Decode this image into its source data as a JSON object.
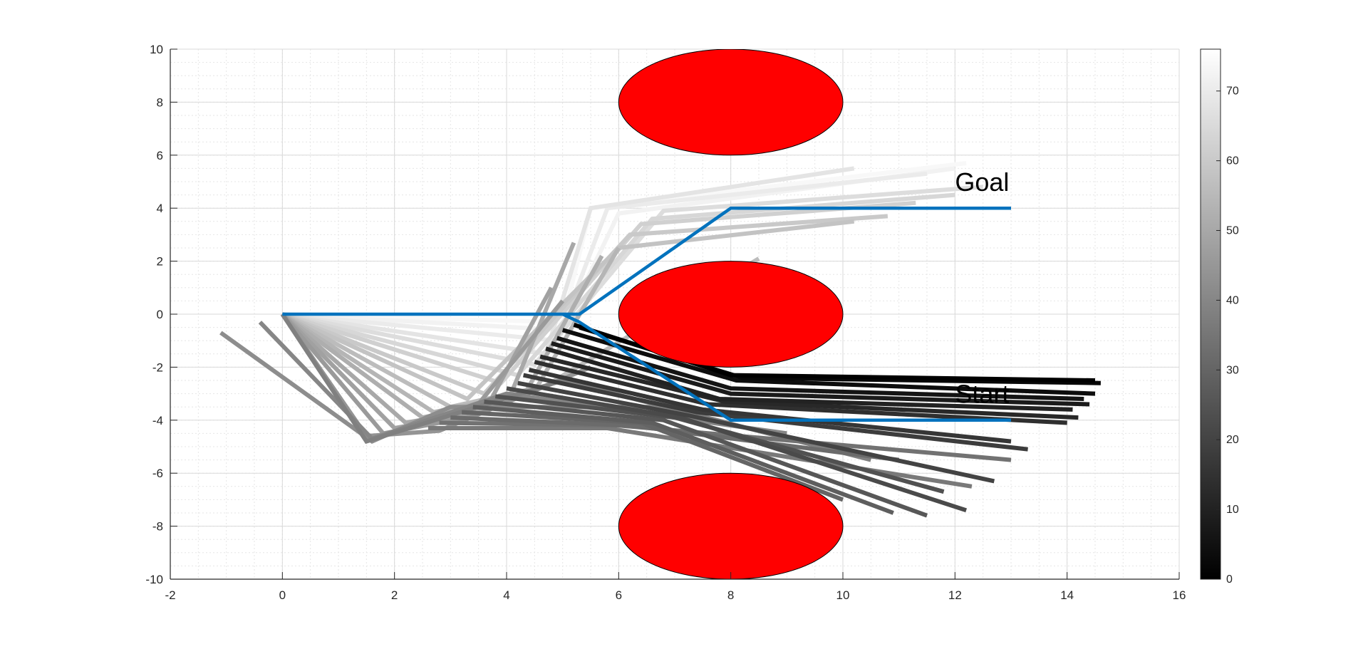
{
  "chart_data": {
    "type": "line",
    "title": "",
    "xlabel": "",
    "ylabel": "",
    "xlim": [
      -2,
      16
    ],
    "ylim": [
      -10,
      10
    ],
    "grid": true,
    "minor_grid": true,
    "x_ticks": [
      -2,
      0,
      2,
      4,
      6,
      8,
      10,
      12,
      14,
      16
    ],
    "y_ticks": [
      -10,
      -8,
      -6,
      -4,
      -2,
      0,
      2,
      4,
      6,
      8,
      10
    ],
    "x_tick_labels": [
      "-2",
      "0",
      "2",
      "4",
      "6",
      "8",
      "10",
      "12",
      "14",
      "16"
    ],
    "y_tick_labels": [
      "-10",
      "-8",
      "-6",
      "-4",
      "-2",
      "0",
      "2",
      "4",
      "6",
      "8",
      "10"
    ],
    "colorbar": {
      "colormap": "gray",
      "range": [
        0,
        76
      ],
      "ticks": [
        0,
        10,
        20,
        30,
        40,
        50,
        60,
        70
      ],
      "tick_labels": [
        "0",
        "10",
        "20",
        "30",
        "40",
        "50",
        "60",
        "70"
      ]
    },
    "obstacles": [
      {
        "cx": 8,
        "cy": 8,
        "rx": 2,
        "ry": 2,
        "color": "#ff0000"
      },
      {
        "cx": 8,
        "cy": 0,
        "rx": 2,
        "ry": 2,
        "color": "#ff0000"
      },
      {
        "cx": 8,
        "cy": -8,
        "rx": 2,
        "ry": 2,
        "color": "#ff0000"
      }
    ],
    "annotations": [
      {
        "text": "Goal",
        "x": 12,
        "y": 4.6
      },
      {
        "text": "Start",
        "x": 12,
        "y": -3.4
      }
    ],
    "reference_path": {
      "color": "#0072bd",
      "x": [
        13,
        8,
        5.3,
        5.3,
        8,
        13
      ],
      "y": [
        -4,
        -4,
        0,
        0,
        4,
        4
      ]
    },
    "reference_path_full": {
      "x": [
        13,
        8,
        5.3,
        5,
        0,
        5,
        5.3,
        8,
        13
      ],
      "y": [
        -4,
        -4,
        -0.3,
        0,
        0,
        0,
        0,
        4,
        4
      ]
    },
    "iteration_paths": {
      "count": 76,
      "note_series": "Each series is one iteration (color value = iteration index on colorbar)",
      "series": [
        {
          "iter": 0,
          "x": [
            14.5,
            8.0,
            5.2
          ],
          "y": [
            -2.5,
            -2.3,
            -0.4
          ]
        },
        {
          "iter": 2,
          "x": [
            14.6,
            8.2,
            5.3
          ],
          "y": [
            -2.6,
            -2.4,
            -0.5
          ]
        },
        {
          "iter": 4,
          "x": [
            14.5,
            8.1,
            5.0
          ],
          "y": [
            -3.0,
            -2.5,
            -0.6
          ]
        },
        {
          "iter": 6,
          "x": [
            14.3,
            8.0,
            4.9
          ],
          "y": [
            -3.2,
            -2.8,
            -0.9
          ]
        },
        {
          "iter": 8,
          "x": [
            14.4,
            8.0,
            4.8
          ],
          "y": [
            -3.4,
            -3.0,
            -1.1
          ]
        },
        {
          "iter": 10,
          "x": [
            14.1,
            7.8,
            4.7
          ],
          "y": [
            -3.6,
            -3.2,
            -1.3
          ]
        },
        {
          "iter": 12,
          "x": [
            14.2,
            7.9,
            4.6
          ],
          "y": [
            -3.9,
            -3.3,
            -1.6
          ]
        },
        {
          "iter": 14,
          "x": [
            14.0,
            7.6,
            4.5
          ],
          "y": [
            -4.1,
            -3.4,
            -1.8
          ]
        },
        {
          "iter": 16,
          "x": [
            13.0,
            7.5,
            4.4
          ],
          "y": [
            -4.8,
            -3.6,
            -2.1
          ]
        },
        {
          "iter": 18,
          "x": [
            13.3,
            7.4,
            4.3
          ],
          "y": [
            -5.1,
            -3.7,
            -2.3
          ]
        },
        {
          "iter": 20,
          "x": [
            12.7,
            7.2,
            4.2
          ],
          "y": [
            -6.3,
            -3.8,
            -2.6
          ]
        },
        {
          "iter": 22,
          "x": [
            12.2,
            7.1,
            4.0
          ],
          "y": [
            -7.4,
            -3.9,
            -2.8
          ]
        },
        {
          "iter": 24,
          "x": [
            11.8,
            7.0,
            3.8
          ],
          "y": [
            -6.7,
            -3.9,
            -3.1
          ]
        },
        {
          "iter": 26,
          "x": [
            11.5,
            6.8,
            3.6
          ],
          "y": [
            -7.6,
            -4.0,
            -3.3
          ]
        },
        {
          "iter": 28,
          "x": [
            10.9,
            6.6,
            3.4
          ],
          "y": [
            -7.5,
            -4.1,
            -3.5
          ]
        },
        {
          "iter": 30,
          "x": [
            10.0,
            6.4,
            3.2
          ],
          "y": [
            -7.0,
            -4.1,
            -3.7
          ]
        },
        {
          "iter": 32,
          "x": [
            11.0,
            6.2,
            3.0
          ],
          "y": [
            -5.5,
            -4.2,
            -3.9
          ]
        },
        {
          "iter": 34,
          "x": [
            13.0,
            6.0,
            2.8
          ],
          "y": [
            -5.5,
            -4.2,
            -4.1
          ]
        },
        {
          "iter": 36,
          "x": [
            12.3,
            5.8,
            2.6
          ],
          "y": [
            -6.5,
            -4.3,
            -4.3
          ]
        },
        {
          "iter": 38,
          "x": [
            10.5,
            5.0,
            1.5,
            0.0
          ],
          "y": [
            -5.5,
            -2.5,
            -4.8,
            0.0
          ]
        },
        {
          "iter": 40,
          "x": [
            9.0,
            4.0,
            1.6,
            -0.4
          ],
          "y": [
            -4.5,
            -3.0,
            -4.7,
            -0.3
          ]
        },
        {
          "iter": 42,
          "x": [
            7.0,
            3.0,
            1.6,
            -1.1
          ],
          "y": [
            -3.5,
            -3.5,
            -4.8,
            -0.7
          ]
        },
        {
          "iter": 44,
          "x": [
            5.5,
            2.8,
            1.5,
            0.0
          ],
          "y": [
            -2.0,
            -4.4,
            -4.6,
            0.0
          ]
        },
        {
          "iter": 46,
          "x": [
            5.0,
            3.3,
            1.8,
            0.0
          ],
          "y": [
            0.5,
            -3.9,
            -4.5,
            0.0
          ]
        },
        {
          "iter": 48,
          "x": [
            4.8,
            3.6,
            2.0,
            0.0
          ],
          "y": [
            1.0,
            -3.7,
            -4.3,
            0.0
          ]
        },
        {
          "iter": 50,
          "x": [
            5.2,
            4.0,
            2.2,
            0.0
          ],
          "y": [
            2.7,
            -3.4,
            -4.1,
            0.0
          ]
        },
        {
          "iter": 52,
          "x": [
            5.7,
            4.3,
            2.5,
            0.0
          ],
          "y": [
            2.2,
            -3.1,
            -3.9,
            0.0
          ]
        },
        {
          "iter": 54,
          "x": [
            6.0,
            4.5,
            2.7,
            0.0
          ],
          "y": [
            2.5,
            -2.9,
            -3.7,
            0.0
          ]
        },
        {
          "iter": 56,
          "x": [
            8.5,
            4.7,
            3.0,
            0.0
          ],
          "y": [
            2.1,
            -2.7,
            -3.5,
            0.0
          ]
        },
        {
          "iter": 58,
          "x": [
            10.2,
            6.0,
            3.3,
            0.0
          ],
          "y": [
            3.5,
            2.5,
            -3.2,
            0.0
          ]
        },
        {
          "iter": 60,
          "x": [
            10.8,
            6.2,
            3.6,
            0.0
          ],
          "y": [
            3.7,
            3.0,
            -3.0,
            0.0
          ]
        },
        {
          "iter": 62,
          "x": [
            11.3,
            6.4,
            3.9,
            0.0
          ],
          "y": [
            4.2,
            3.4,
            -2.6,
            0.0
          ]
        },
        {
          "iter": 64,
          "x": [
            12.0,
            6.6,
            4.2,
            0.0
          ],
          "y": [
            4.5,
            3.6,
            -2.3,
            0.0
          ]
        },
        {
          "iter": 66,
          "x": [
            12.5,
            6.8,
            4.5,
            0.0
          ],
          "y": [
            4.8,
            3.9,
            -1.9,
            0.0
          ]
        },
        {
          "iter": 68,
          "x": [
            10.2,
            5.5,
            4.7,
            0.0
          ],
          "y": [
            5.5,
            4.0,
            -1.5,
            0.0
          ]
        },
        {
          "iter": 70,
          "x": [
            11.5,
            5.8,
            4.9,
            0.0
          ],
          "y": [
            5.3,
            4.0,
            -1.0,
            0.0
          ]
        },
        {
          "iter": 72,
          "x": [
            12.0,
            6.0,
            5.0,
            0.0
          ],
          "y": [
            5.5,
            3.8,
            -0.6,
            0.0
          ]
        },
        {
          "iter": 74,
          "x": [
            12.2,
            5.5,
            5.0,
            0.0
          ],
          "y": [
            5.7,
            4.0,
            -0.3,
            0.0
          ]
        }
      ]
    }
  }
}
